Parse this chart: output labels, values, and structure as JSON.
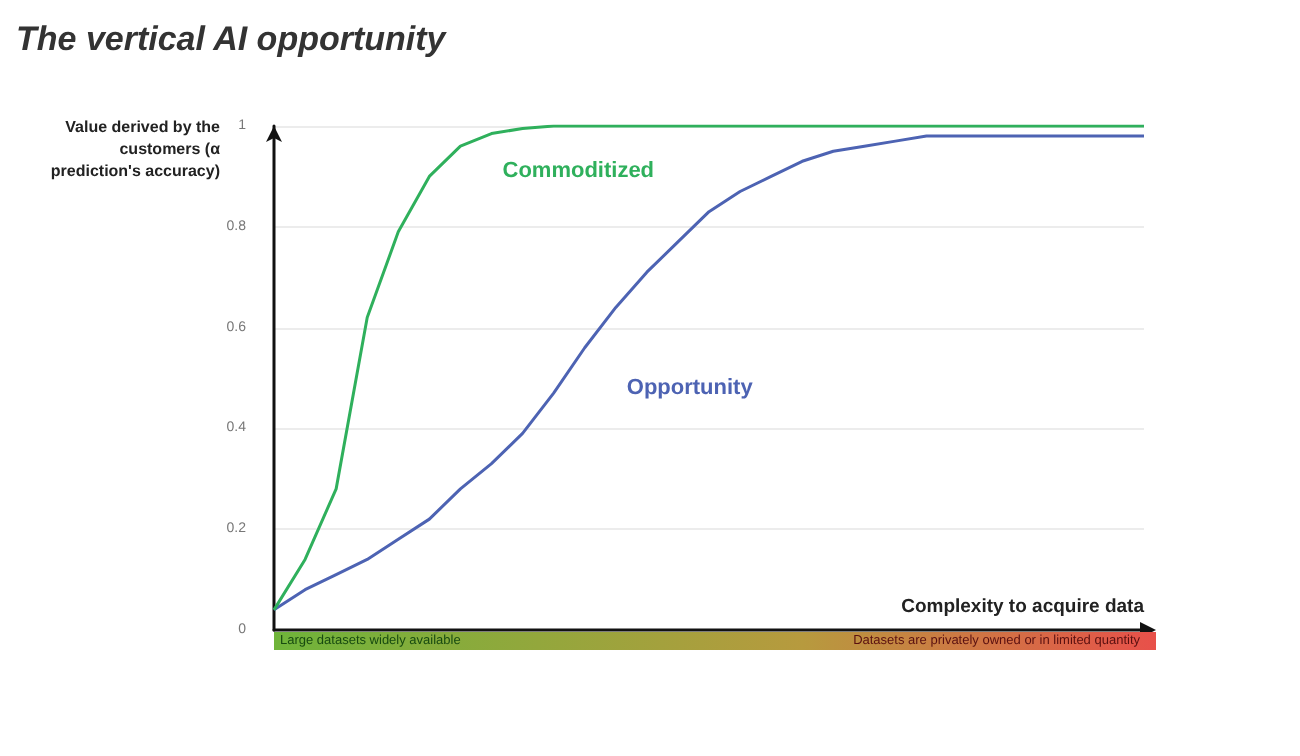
{
  "chart_data": {
    "type": "line",
    "title": "The vertical AI opportunity",
    "ylabel": "Value derived by the customers (α prediction's accuracy)",
    "xlabel": "Complexity to acquire data",
    "categories": [
      null,
      null,
      null,
      null,
      null,
      null,
      null,
      null,
      null,
      null,
      null,
      null,
      null,
      null,
      null,
      null,
      null,
      null,
      null,
      null,
      null,
      null,
      null,
      null,
      null,
      null,
      null,
      null,
      null
    ],
    "series": [
      {
        "name": "Commoditized",
        "color": "#2fb05c",
        "values": [
          0.04,
          0.14,
          0.28,
          0.62,
          0.79,
          0.9,
          0.96,
          0.985,
          0.995,
          1,
          1,
          1,
          1,
          1,
          1,
          1,
          1,
          1,
          1,
          1,
          1,
          1,
          1,
          1,
          1,
          1,
          1,
          1,
          1
        ]
      },
      {
        "name": "Opportunity",
        "color": "#4d63b3",
        "values": [
          0.04,
          0.08,
          0.11,
          0.14,
          0.18,
          0.22,
          0.28,
          0.33,
          0.39,
          0.47,
          0.56,
          0.64,
          0.71,
          0.77,
          0.83,
          0.87,
          0.9,
          0.93,
          0.95,
          0.96,
          0.97,
          0.98,
          0.98,
          0.98,
          0.98,
          0.98,
          0.98,
          0.98,
          0.98
        ]
      }
    ],
    "ylim": [
      0,
      1
    ],
    "yticks": [
      0,
      0.2,
      0.4,
      0.6,
      0.8,
      1
    ],
    "grid": "y",
    "legend": false,
    "marker": "none",
    "line_style": "solid",
    "annotations": [
      "Large datasets widely available",
      "Datasets are privately owned or in limited quantity"
    ]
  }
}
